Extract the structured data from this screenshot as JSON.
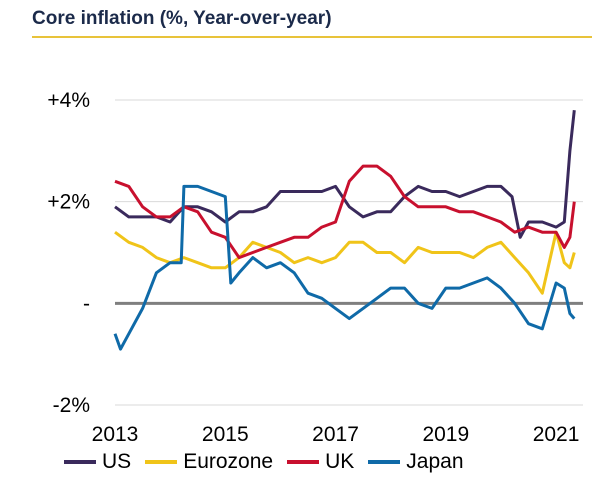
{
  "title": "Core inflation (%, Year-over-year)",
  "colors": {
    "title_rule": "#e8c33a",
    "zero_line": "#7f7f7f",
    "neg_tick": "#e00000"
  },
  "chart_data": {
    "type": "line",
    "title": "Core inflation (%, Year-over-year)",
    "xlabel": "",
    "ylabel": "",
    "xlim": [
      2013.0,
      2021.4
    ],
    "ylim": [
      -2,
      4
    ],
    "y_ticks": [
      {
        "value": 4,
        "label": "+4%"
      },
      {
        "value": 2,
        "label": "+2%"
      },
      {
        "value": 0,
        "label": "-"
      },
      {
        "value": -2,
        "label": "-2%"
      }
    ],
    "x_ticks": [
      2013,
      2015,
      2017,
      2019,
      2021
    ],
    "x_tick_labels": [
      "2013",
      "2015",
      "2017",
      "2019",
      "2021"
    ],
    "grid": "horizontal",
    "legend_position": "bottom",
    "series": [
      {
        "name": "US",
        "color": "#3a2a5c",
        "x": [
          2013.0,
          2013.25,
          2013.5,
          2013.75,
          2014.0,
          2014.25,
          2014.5,
          2014.75,
          2015.0,
          2015.25,
          2015.5,
          2015.75,
          2016.0,
          2016.25,
          2016.5,
          2016.75,
          2017.0,
          2017.25,
          2017.5,
          2017.75,
          2018.0,
          2018.25,
          2018.5,
          2018.75,
          2019.0,
          2019.25,
          2019.5,
          2019.75,
          2020.0,
          2020.2,
          2020.35,
          2020.5,
          2020.75,
          2021.0,
          2021.15,
          2021.25,
          2021.33
        ],
        "values": [
          1.9,
          1.7,
          1.7,
          1.7,
          1.6,
          1.9,
          1.9,
          1.8,
          1.6,
          1.8,
          1.8,
          1.9,
          2.2,
          2.2,
          2.2,
          2.2,
          2.3,
          1.9,
          1.7,
          1.8,
          1.8,
          2.1,
          2.3,
          2.2,
          2.2,
          2.1,
          2.2,
          2.3,
          2.3,
          2.1,
          1.3,
          1.6,
          1.6,
          1.5,
          1.6,
          3.0,
          3.8
        ]
      },
      {
        "name": "Eurozone",
        "color": "#f0c419",
        "x": [
          2013.0,
          2013.25,
          2013.5,
          2013.75,
          2014.0,
          2014.25,
          2014.5,
          2014.75,
          2015.0,
          2015.25,
          2015.5,
          2015.75,
          2016.0,
          2016.25,
          2016.5,
          2016.75,
          2017.0,
          2017.25,
          2017.5,
          2017.75,
          2018.0,
          2018.25,
          2018.5,
          2018.75,
          2019.0,
          2019.25,
          2019.5,
          2019.75,
          2020.0,
          2020.25,
          2020.5,
          2020.75,
          2021.0,
          2021.15,
          2021.25,
          2021.33
        ],
        "values": [
          1.4,
          1.2,
          1.1,
          0.9,
          0.8,
          0.9,
          0.8,
          0.7,
          0.7,
          0.9,
          1.2,
          1.1,
          1.0,
          0.8,
          0.9,
          0.8,
          0.9,
          1.2,
          1.2,
          1.0,
          1.0,
          0.8,
          1.1,
          1.0,
          1.0,
          1.0,
          0.9,
          1.1,
          1.2,
          0.9,
          0.6,
          0.2,
          1.4,
          0.8,
          0.7,
          1.0
        ]
      },
      {
        "name": "UK",
        "color": "#c8102e",
        "x": [
          2013.0,
          2013.25,
          2013.5,
          2013.75,
          2014.0,
          2014.25,
          2014.5,
          2014.75,
          2015.0,
          2015.25,
          2015.5,
          2015.75,
          2016.0,
          2016.25,
          2016.5,
          2016.75,
          2017.0,
          2017.25,
          2017.5,
          2017.75,
          2018.0,
          2018.25,
          2018.5,
          2018.75,
          2019.0,
          2019.25,
          2019.5,
          2019.75,
          2020.0,
          2020.25,
          2020.5,
          2020.75,
          2021.0,
          2021.15,
          2021.25,
          2021.33
        ],
        "values": [
          2.4,
          2.3,
          1.9,
          1.7,
          1.7,
          1.9,
          1.8,
          1.4,
          1.3,
          0.9,
          1.0,
          1.1,
          1.2,
          1.3,
          1.3,
          1.5,
          1.6,
          2.4,
          2.7,
          2.7,
          2.5,
          2.1,
          1.9,
          1.9,
          1.9,
          1.8,
          1.8,
          1.7,
          1.6,
          1.4,
          1.5,
          1.4,
          1.4,
          1.1,
          1.3,
          2.0
        ]
      },
      {
        "name": "Japan",
        "color": "#0f6aa8",
        "x": [
          2013.0,
          2013.1,
          2013.25,
          2013.5,
          2013.75,
          2014.0,
          2014.2,
          2014.25,
          2014.5,
          2014.75,
          2015.0,
          2015.1,
          2015.25,
          2015.5,
          2015.75,
          2016.0,
          2016.25,
          2016.5,
          2016.75,
          2017.0,
          2017.25,
          2017.5,
          2017.75,
          2018.0,
          2018.25,
          2018.5,
          2018.75,
          2019.0,
          2019.25,
          2019.5,
          2019.75,
          2020.0,
          2020.25,
          2020.5,
          2020.75,
          2021.0,
          2021.15,
          2021.25,
          2021.33
        ],
        "values": [
          -0.6,
          -0.9,
          -0.6,
          -0.1,
          0.6,
          0.8,
          0.8,
          2.3,
          2.3,
          2.2,
          2.1,
          0.4,
          0.6,
          0.9,
          0.7,
          0.8,
          0.6,
          0.2,
          0.1,
          -0.1,
          -0.3,
          -0.1,
          0.1,
          0.3,
          0.3,
          0.0,
          -0.1,
          0.3,
          0.3,
          0.4,
          0.5,
          0.3,
          0.0,
          -0.4,
          -0.5,
          0.4,
          0.3,
          -0.2,
          -0.3
        ]
      }
    ]
  }
}
